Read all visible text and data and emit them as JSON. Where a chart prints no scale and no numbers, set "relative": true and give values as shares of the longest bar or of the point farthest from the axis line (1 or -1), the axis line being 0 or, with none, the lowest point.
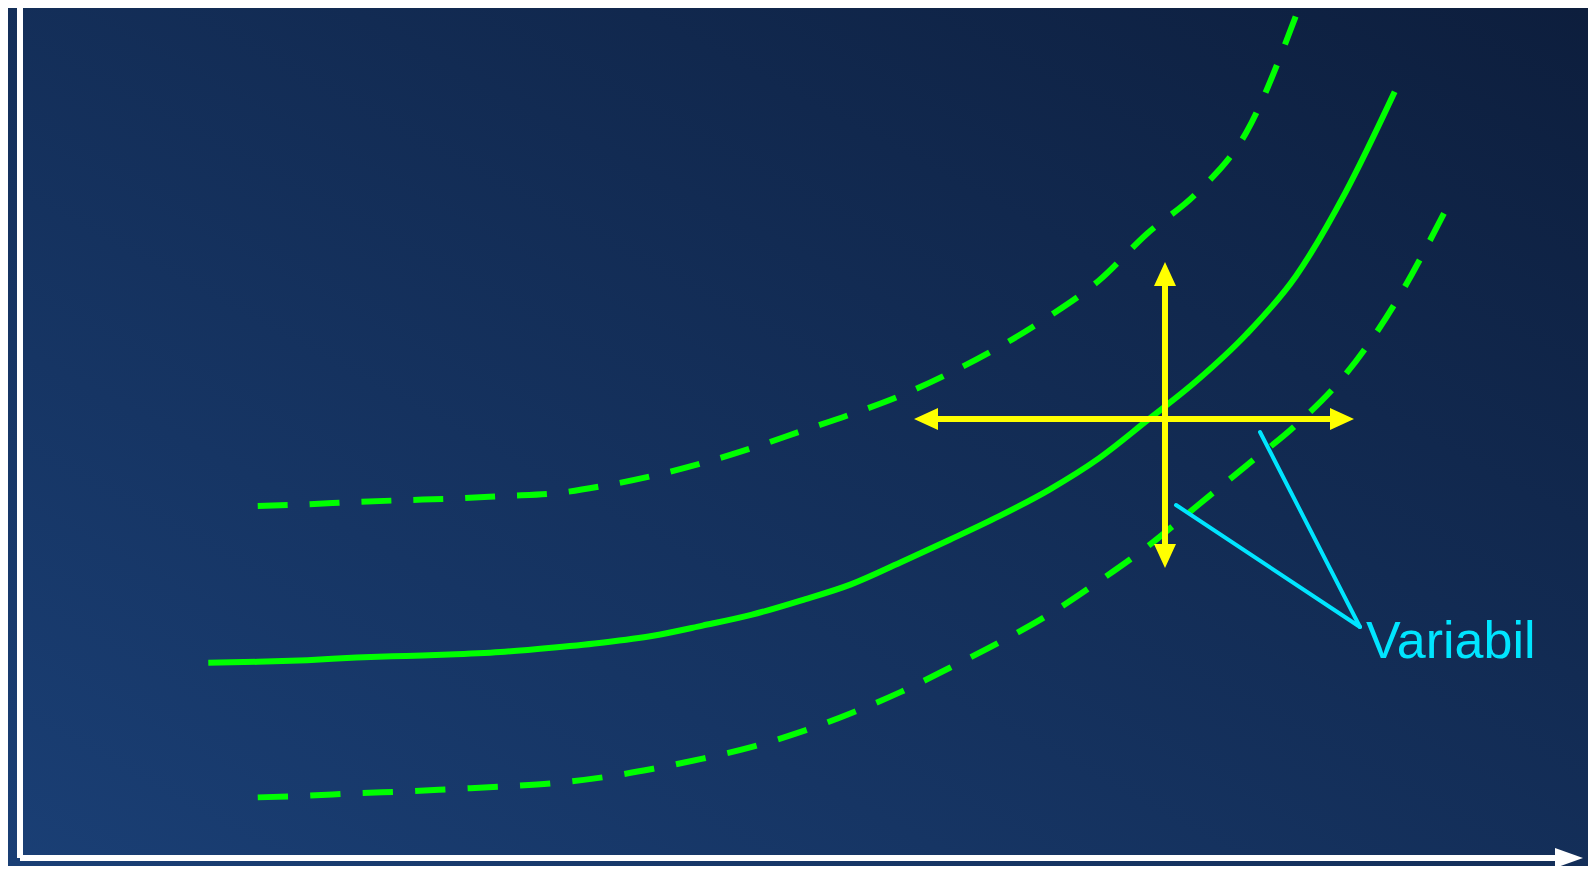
{
  "chart_data": {
    "type": "line",
    "relative": true,
    "legend": false,
    "grid": false,
    "categories": [
      null,
      null,
      null,
      null,
      null,
      null,
      null,
      null,
      null,
      null,
      null,
      null,
      null,
      null,
      null,
      null,
      null,
      null,
      null,
      null,
      null,
      null,
      null,
      null,
      null,
      null,
      null,
      null,
      null,
      null,
      null
    ],
    "series": [
      {
        "color": "#00ff00",
        "line_style": "solid",
        "values": [
          null,
          null,
          null,
          0.232,
          0.233,
          0.235,
          0.238,
          0.24,
          0.242,
          0.245,
          0.25,
          0.256,
          0.264,
          0.276,
          0.289,
          0.306,
          0.325,
          0.351,
          0.378,
          0.406,
          0.437,
          0.474,
          0.52,
          0.567,
          0.622,
          0.691,
          0.79,
          0.91,
          null,
          null,
          null
        ]
      },
      {
        "color": "#00ff00",
        "line_style": "dashed",
        "values": [
          null,
          null,
          null,
          null,
          0.418,
          0.42,
          0.423,
          0.425,
          0.427,
          0.43,
          0.433,
          0.442,
          0.454,
          0.469,
          0.487,
          0.507,
          0.527,
          0.549,
          0.576,
          0.607,
          0.643,
          0.685,
          0.742,
          0.79,
          0.862,
          1.0,
          null,
          null,
          null,
          null,
          null
        ]
      },
      {
        "color": "#00ff00",
        "line_style": "dashed",
        "values": [
          null,
          null,
          null,
          null,
          0.072,
          0.074,
          0.077,
          0.079,
          0.082,
          0.085,
          0.089,
          0.096,
          0.106,
          0.118,
          0.132,
          0.15,
          0.172,
          0.197,
          0.226,
          0.256,
          0.289,
          0.328,
          0.37,
          0.418,
          0.466,
          0.514,
          0.574,
          0.658,
          0.766,
          null,
          null
        ]
      }
    ],
    "annotations": [
      "Variabil"
    ]
  }
}
